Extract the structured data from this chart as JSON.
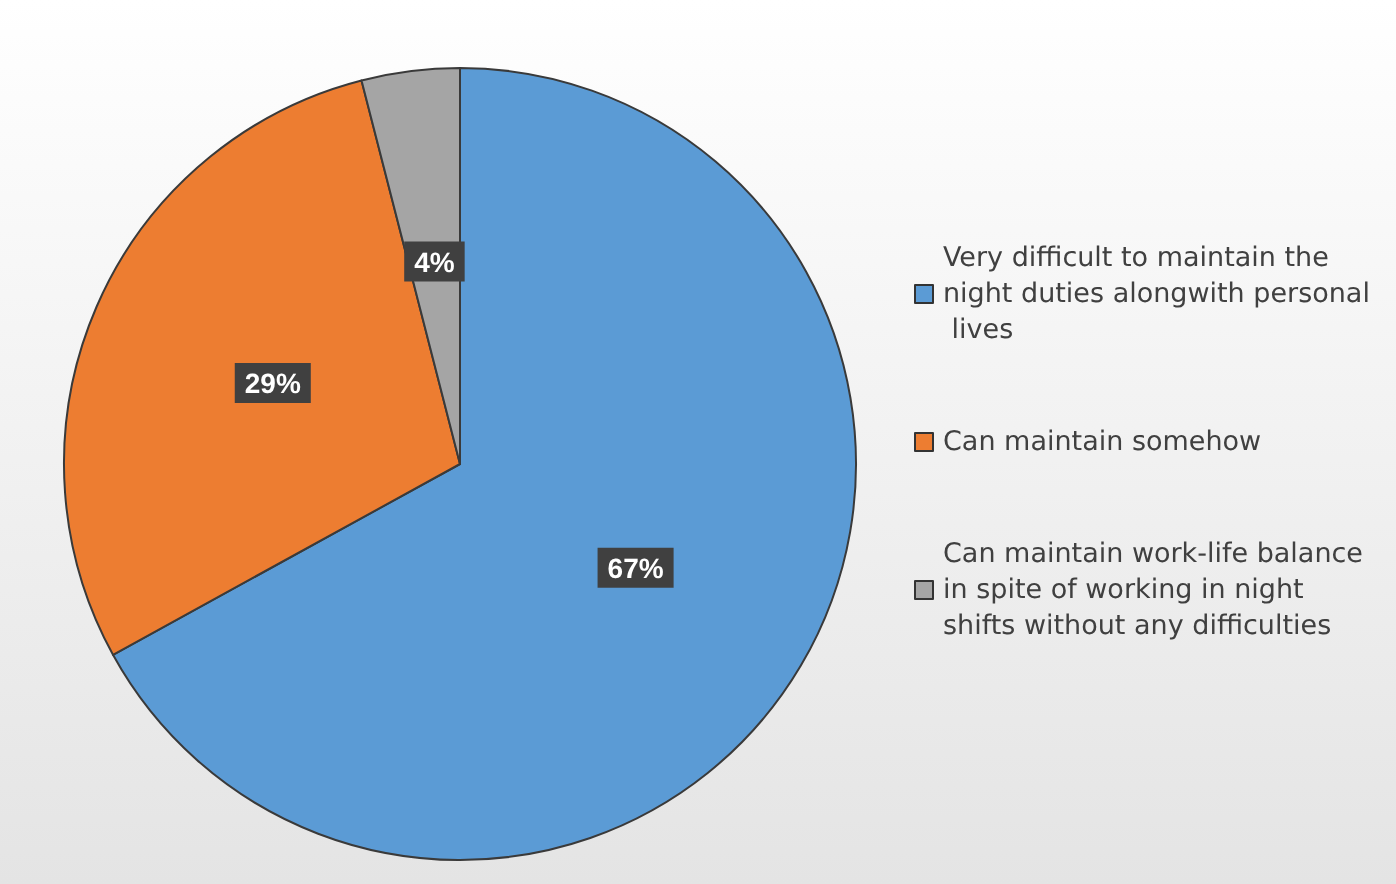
{
  "chart_data": {
    "type": "pie",
    "categories": [
      "Very difficult to maintain the night duties alongwith personal lives",
      "Can maintain somehow",
      "Can maintain work-life balance in spite of working in night shifts without any difficulties"
    ],
    "values": [
      67,
      29,
      4
    ],
    "colors": [
      "#5b9bd5",
      "#ed7d31",
      "#a5a5a5"
    ],
    "value_labels": [
      "67%",
      "29%",
      "4%"
    ],
    "legend": "right"
  }
}
